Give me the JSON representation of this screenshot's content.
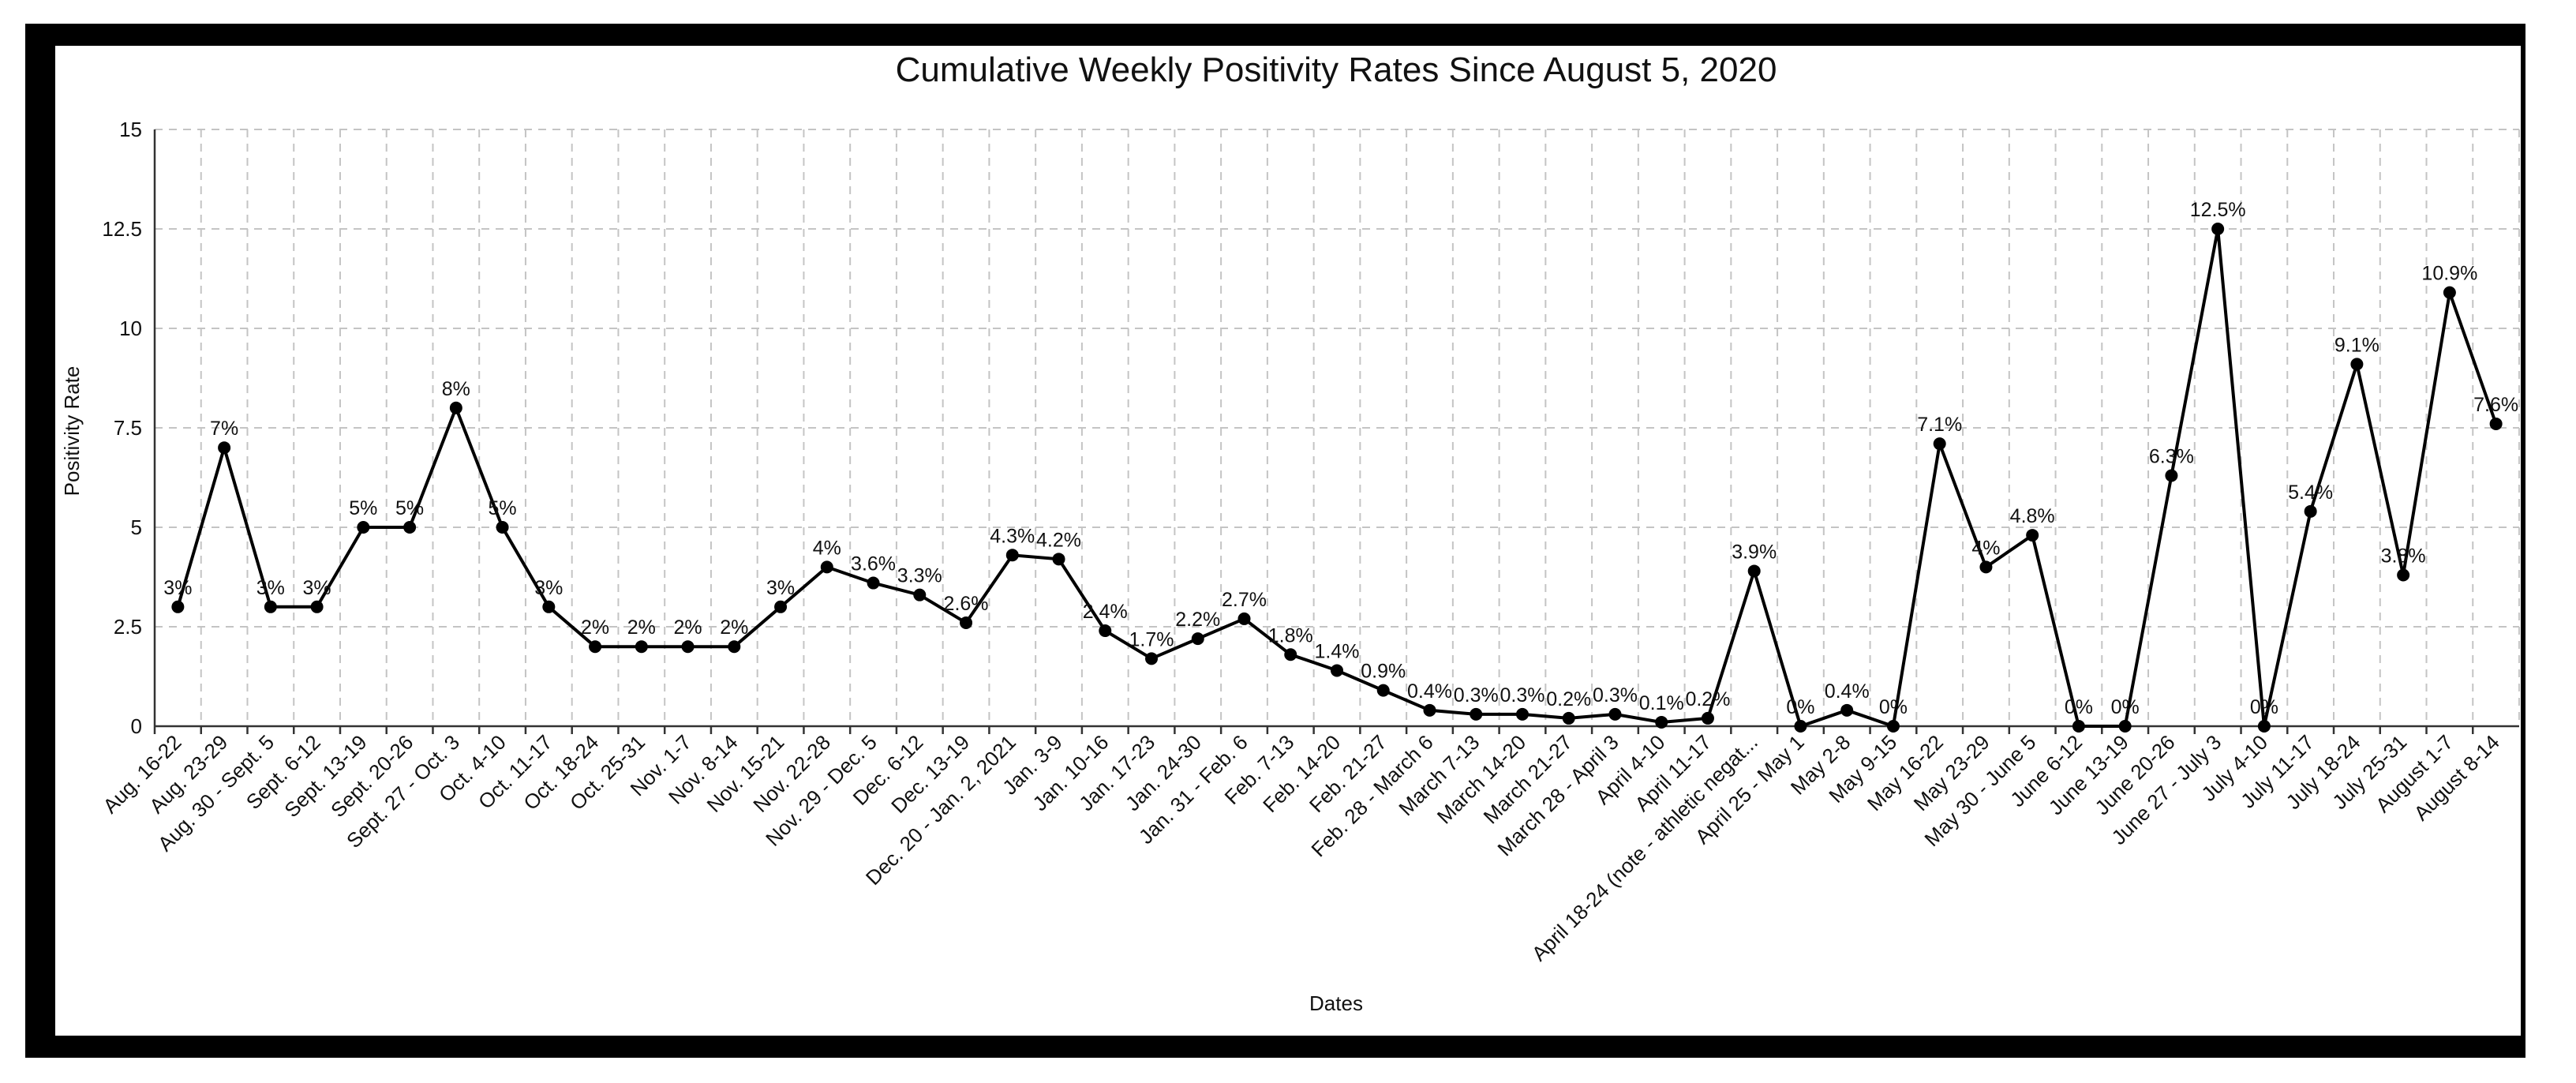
{
  "chart_data": {
    "type": "line",
    "title": "Cumulative Weekly Positivity Rates Since August 5, 2020",
    "xlabel": "Dates",
    "ylabel": "Positivity Rate",
    "ylim": [
      0,
      15
    ],
    "yticks": [
      "0",
      "2.5",
      "5",
      "7.5",
      "10",
      "12.5",
      "15"
    ],
    "grid": true,
    "categories": [
      "Aug. 16-22",
      "Aug. 23-29",
      "Aug. 30 - Sept. 5",
      "Sept. 6-12",
      "Sept. 13-19",
      "Sept. 20-26",
      "Sept. 27 - Oct. 3",
      "Oct. 4-10",
      "Oct. 11-17",
      "Oct. 18-24",
      "Oct. 25-31",
      "Nov. 1-7",
      "Nov. 8-14",
      "Nov. 15-21",
      "Nov. 22-28",
      "Nov. 29 - Dec. 5",
      "Dec. 6-12",
      "Dec. 13-19",
      "Dec. 20 - Jan. 2, 2021",
      "Jan. 3-9",
      "Jan. 10-16",
      "Jan. 17-23",
      "Jan. 24-30",
      "Jan. 31 - Feb. 6",
      "Feb. 7-13",
      "Feb. 14-20",
      "Feb. 21-27",
      "Feb. 28 - March 6",
      "March 7-13",
      "March 14-20",
      "March 21-27",
      "March 28 - April 3",
      "April 4-10",
      "April 11-17",
      "April 18-24 (note - athletic negat...",
      "April 25 - May 1",
      "May 2-8",
      "May 9-15",
      "May 16-22",
      "May 23-29",
      "May 30 - June 5",
      "June 6-12",
      "June 13-19",
      "June 20-26",
      "June 27 - July 3",
      "July 4-10",
      "July 11-17",
      "July 18-24",
      "July 25-31",
      "August 1-7",
      "August 8-14"
    ],
    "series": [
      {
        "values": [
          3,
          7,
          3,
          3,
          5,
          5,
          8,
          5,
          3,
          2,
          2,
          2,
          2,
          3,
          4,
          3.6,
          3.3,
          2.6,
          4.3,
          4.2,
          2.4,
          1.7,
          2.2,
          2.7,
          1.8,
          1.4,
          0.9,
          0.4,
          0.3,
          0.3,
          0.2,
          0.3,
          0.1,
          0.2,
          3.9,
          0,
          0.4,
          0,
          7.1,
          4,
          4.8,
          0,
          0,
          6.3,
          12.5,
          0,
          5.4,
          9.1,
          3.8,
          10.9,
          7.6
        ],
        "labels": [
          "3%",
          "7%",
          "3%",
          "3%",
          "5%",
          "5%",
          "8%",
          "5%",
          "3%",
          "2%",
          "2%",
          "2%",
          "2%",
          "3%",
          "4%",
          "3.6%",
          "3.3%",
          "2.6%",
          "4.3%",
          "4.2%",
          "2.4%",
          "1.7%",
          "2.2%",
          "2.7%",
          "1.8%",
          "1.4%",
          "0.9%",
          "0.4%",
          "0.3%",
          "0.3%",
          "0.2%",
          "0.3%",
          "0.1%",
          "0.2%",
          "3.9%",
          "0%",
          "0.4%",
          "0%",
          "7.1%",
          "4%",
          "4.8%",
          "0%",
          "0%",
          "6.3%",
          "12.5%",
          "0%",
          "5.4%",
          "9.1%",
          "3.8%",
          "10.9%",
          "7.6%"
        ],
        "color": "#000000"
      }
    ]
  }
}
